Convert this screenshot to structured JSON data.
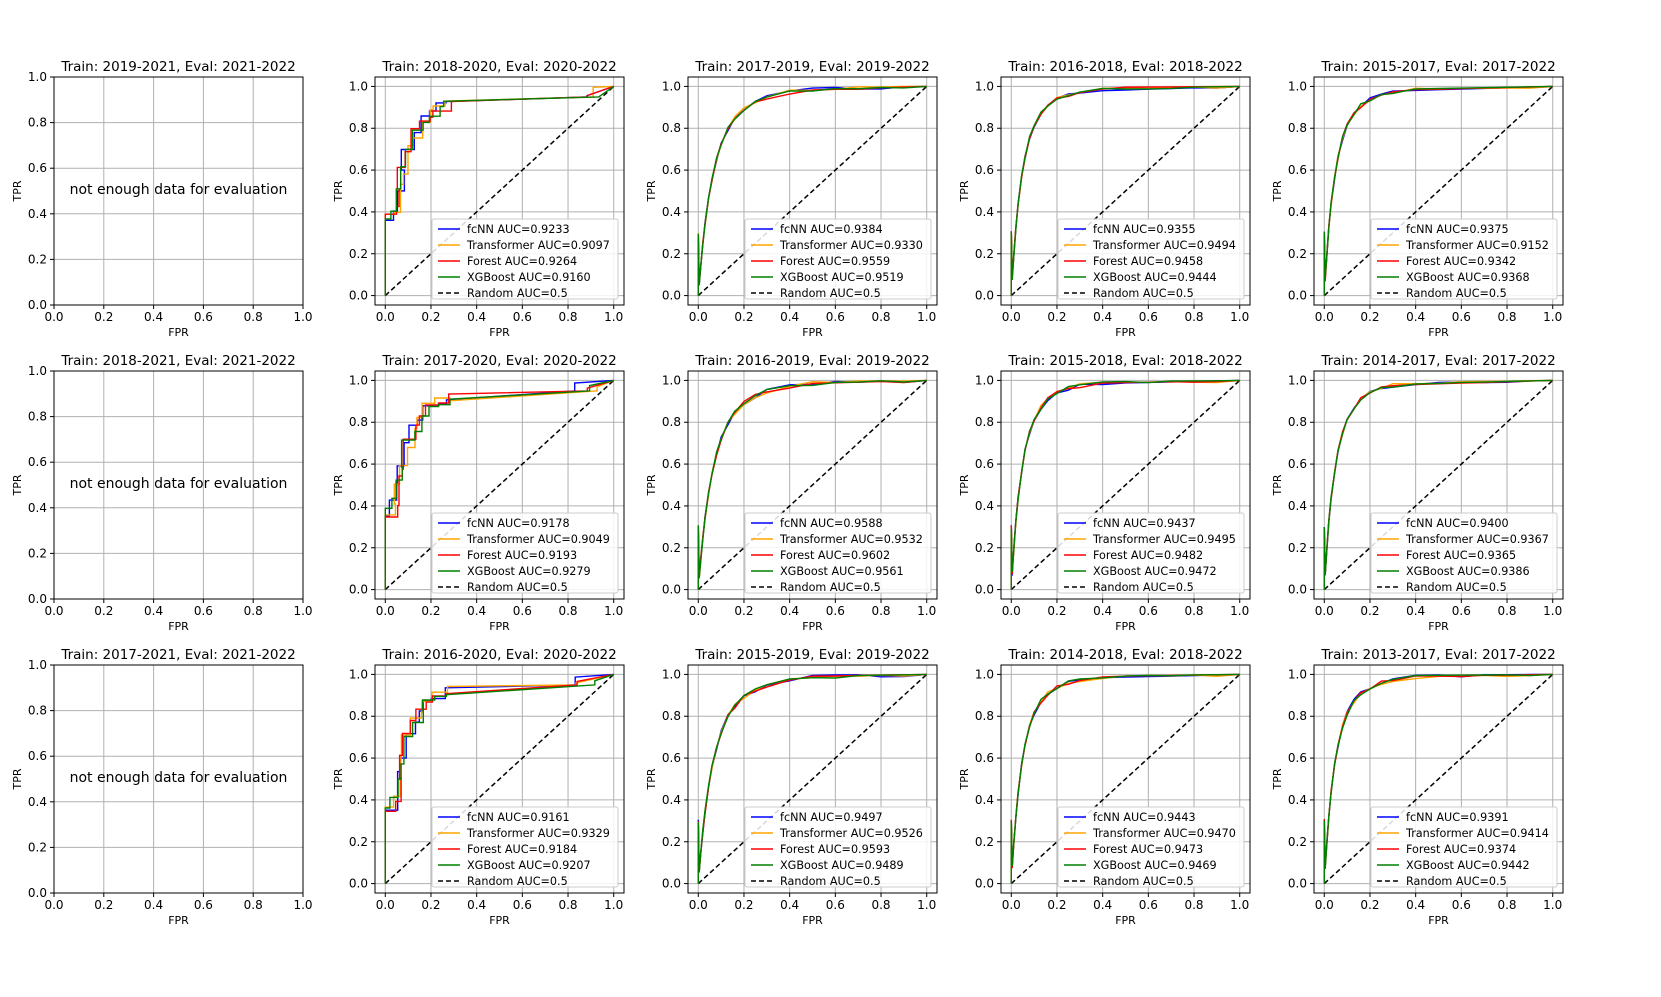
{
  "figure": {
    "xlabel": "FPR",
    "ylabel": "TPR",
    "no_data_message": "not enough data for evaluation",
    "random_label": "Random AUC=0.5",
    "model_names": [
      "fcNN",
      "Transformer",
      "Forest",
      "XGBoost"
    ],
    "colors": {
      "fcNN": "#0000ff",
      "Transformer": "#ffa500",
      "Forest": "#ff0000",
      "XGBoost": "#008000",
      "random": "#000000",
      "grid": "#b0b0b0"
    }
  },
  "chart_data": [
    {
      "type": "line",
      "title": "Train: 2019-2021, Eval: 2021-2022",
      "no_data": true,
      "xlabel": "FPR",
      "ylabel": "TPR",
      "xlim": [
        0,
        1
      ],
      "ylim": [
        0,
        1
      ],
      "grid": true
    },
    {
      "type": "line",
      "title": "Train: 2018-2020, Eval: 2020-2022",
      "kind": "small",
      "auc": {
        "fcNN": "0.9233",
        "Transformer": "0.9097",
        "Forest": "0.9264",
        "XGBoost": "0.9160"
      },
      "xlabel": "FPR",
      "ylabel": "TPR",
      "xlim": [
        0,
        1
      ],
      "ylim": [
        0,
        1
      ],
      "grid": true,
      "legend": "lower-right"
    },
    {
      "type": "line",
      "title": "Train: 2017-2019, Eval: 2019-2022",
      "kind": "medium",
      "auc": {
        "fcNN": "0.9384",
        "Transformer": "0.9330",
        "Forest": "0.9559",
        "XGBoost": "0.9519"
      },
      "xlabel": "FPR",
      "ylabel": "TPR",
      "xlim": [
        0,
        1
      ],
      "ylim": [
        0,
        1
      ],
      "grid": true,
      "legend": "lower-right"
    },
    {
      "type": "line",
      "title": "Train: 2016-2018, Eval: 2018-2022",
      "kind": "large",
      "auc": {
        "fcNN": "0.9355",
        "Transformer": "0.9494",
        "Forest": "0.9458",
        "XGBoost": "0.9444"
      },
      "xlabel": "FPR",
      "ylabel": "TPR",
      "xlim": [
        0,
        1
      ],
      "ylim": [
        0,
        1
      ],
      "grid": true,
      "legend": "lower-right"
    },
    {
      "type": "line",
      "title": "Train: 2015-2017, Eval: 2017-2022",
      "kind": "large",
      "auc": {
        "fcNN": "0.9375",
        "Transformer": "0.9152",
        "Forest": "0.9342",
        "XGBoost": "0.9368"
      },
      "xlabel": "FPR",
      "ylabel": "TPR",
      "xlim": [
        0,
        1
      ],
      "ylim": [
        0,
        1
      ],
      "grid": true,
      "legend": "lower-right"
    },
    {
      "type": "line",
      "title": "Train: 2018-2021, Eval: 2021-2022",
      "no_data": true,
      "xlabel": "FPR",
      "ylabel": "TPR",
      "xlim": [
        0,
        1
      ],
      "ylim": [
        0,
        1
      ],
      "grid": true
    },
    {
      "type": "line",
      "title": "Train: 2017-2020, Eval: 2020-2022",
      "kind": "small",
      "auc": {
        "fcNN": "0.9178",
        "Transformer": "0.9049",
        "Forest": "0.9193",
        "XGBoost": "0.9279"
      },
      "xlabel": "FPR",
      "ylabel": "TPR",
      "xlim": [
        0,
        1
      ],
      "ylim": [
        0,
        1
      ],
      "grid": true,
      "legend": "lower-right"
    },
    {
      "type": "line",
      "title": "Train: 2016-2019, Eval: 2019-2022",
      "kind": "medium",
      "auc": {
        "fcNN": "0.9588",
        "Transformer": "0.9532",
        "Forest": "0.9602",
        "XGBoost": "0.9561"
      },
      "xlabel": "FPR",
      "ylabel": "TPR",
      "xlim": [
        0,
        1
      ],
      "ylim": [
        0,
        1
      ],
      "grid": true,
      "legend": "lower-right"
    },
    {
      "type": "line",
      "title": "Train: 2015-2018, Eval: 2018-2022",
      "kind": "large",
      "auc": {
        "fcNN": "0.9437",
        "Transformer": "0.9495",
        "Forest": "0.9482",
        "XGBoost": "0.9472"
      },
      "xlabel": "FPR",
      "ylabel": "TPR",
      "xlim": [
        0,
        1
      ],
      "ylim": [
        0,
        1
      ],
      "grid": true,
      "legend": "lower-right"
    },
    {
      "type": "line",
      "title": "Train: 2014-2017, Eval: 2017-2022",
      "kind": "large",
      "auc": {
        "fcNN": "0.9400",
        "Transformer": "0.9367",
        "Forest": "0.9365",
        "XGBoost": "0.9386"
      },
      "xlabel": "FPR",
      "ylabel": "TPR",
      "xlim": [
        0,
        1
      ],
      "ylim": [
        0,
        1
      ],
      "grid": true,
      "legend": "lower-right"
    },
    {
      "type": "line",
      "title": "Train: 2017-2021, Eval: 2021-2022",
      "no_data": true,
      "xlabel": "FPR",
      "ylabel": "TPR",
      "xlim": [
        0,
        1
      ],
      "ylim": [
        0,
        1
      ],
      "grid": true
    },
    {
      "type": "line",
      "title": "Train: 2016-2020, Eval: 2020-2022",
      "kind": "small",
      "auc": {
        "fcNN": "0.9161",
        "Transformer": "0.9329",
        "Forest": "0.9184",
        "XGBoost": "0.9207"
      },
      "xlabel": "FPR",
      "ylabel": "TPR",
      "xlim": [
        0,
        1
      ],
      "ylim": [
        0,
        1
      ],
      "grid": true,
      "legend": "lower-right"
    },
    {
      "type": "line",
      "title": "Train: 2015-2019, Eval: 2019-2022",
      "kind": "medium",
      "auc": {
        "fcNN": "0.9497",
        "Transformer": "0.9526",
        "Forest": "0.9593",
        "XGBoost": "0.9489"
      },
      "xlabel": "FPR",
      "ylabel": "TPR",
      "xlim": [
        0,
        1
      ],
      "ylim": [
        0,
        1
      ],
      "grid": true,
      "legend": "lower-right"
    },
    {
      "type": "line",
      "title": "Train: 2014-2018, Eval: 2018-2022",
      "kind": "large",
      "auc": {
        "fcNN": "0.9443",
        "Transformer": "0.9470",
        "Forest": "0.9473",
        "XGBoost": "0.9469"
      },
      "xlabel": "FPR",
      "ylabel": "TPR",
      "xlim": [
        0,
        1
      ],
      "ylim": [
        0,
        1
      ],
      "grid": true,
      "legend": "lower-right"
    },
    {
      "type": "line",
      "title": "Train: 2013-2017, Eval: 2017-2022",
      "kind": "large",
      "auc": {
        "fcNN": "0.9391",
        "Transformer": "0.9414",
        "Forest": "0.9374",
        "XGBoost": "0.9442"
      },
      "xlabel": "FPR",
      "ylabel": "TPR",
      "xlim": [
        0,
        1
      ],
      "ylim": [
        0,
        1
      ],
      "grid": true,
      "legend": "lower-right"
    }
  ]
}
